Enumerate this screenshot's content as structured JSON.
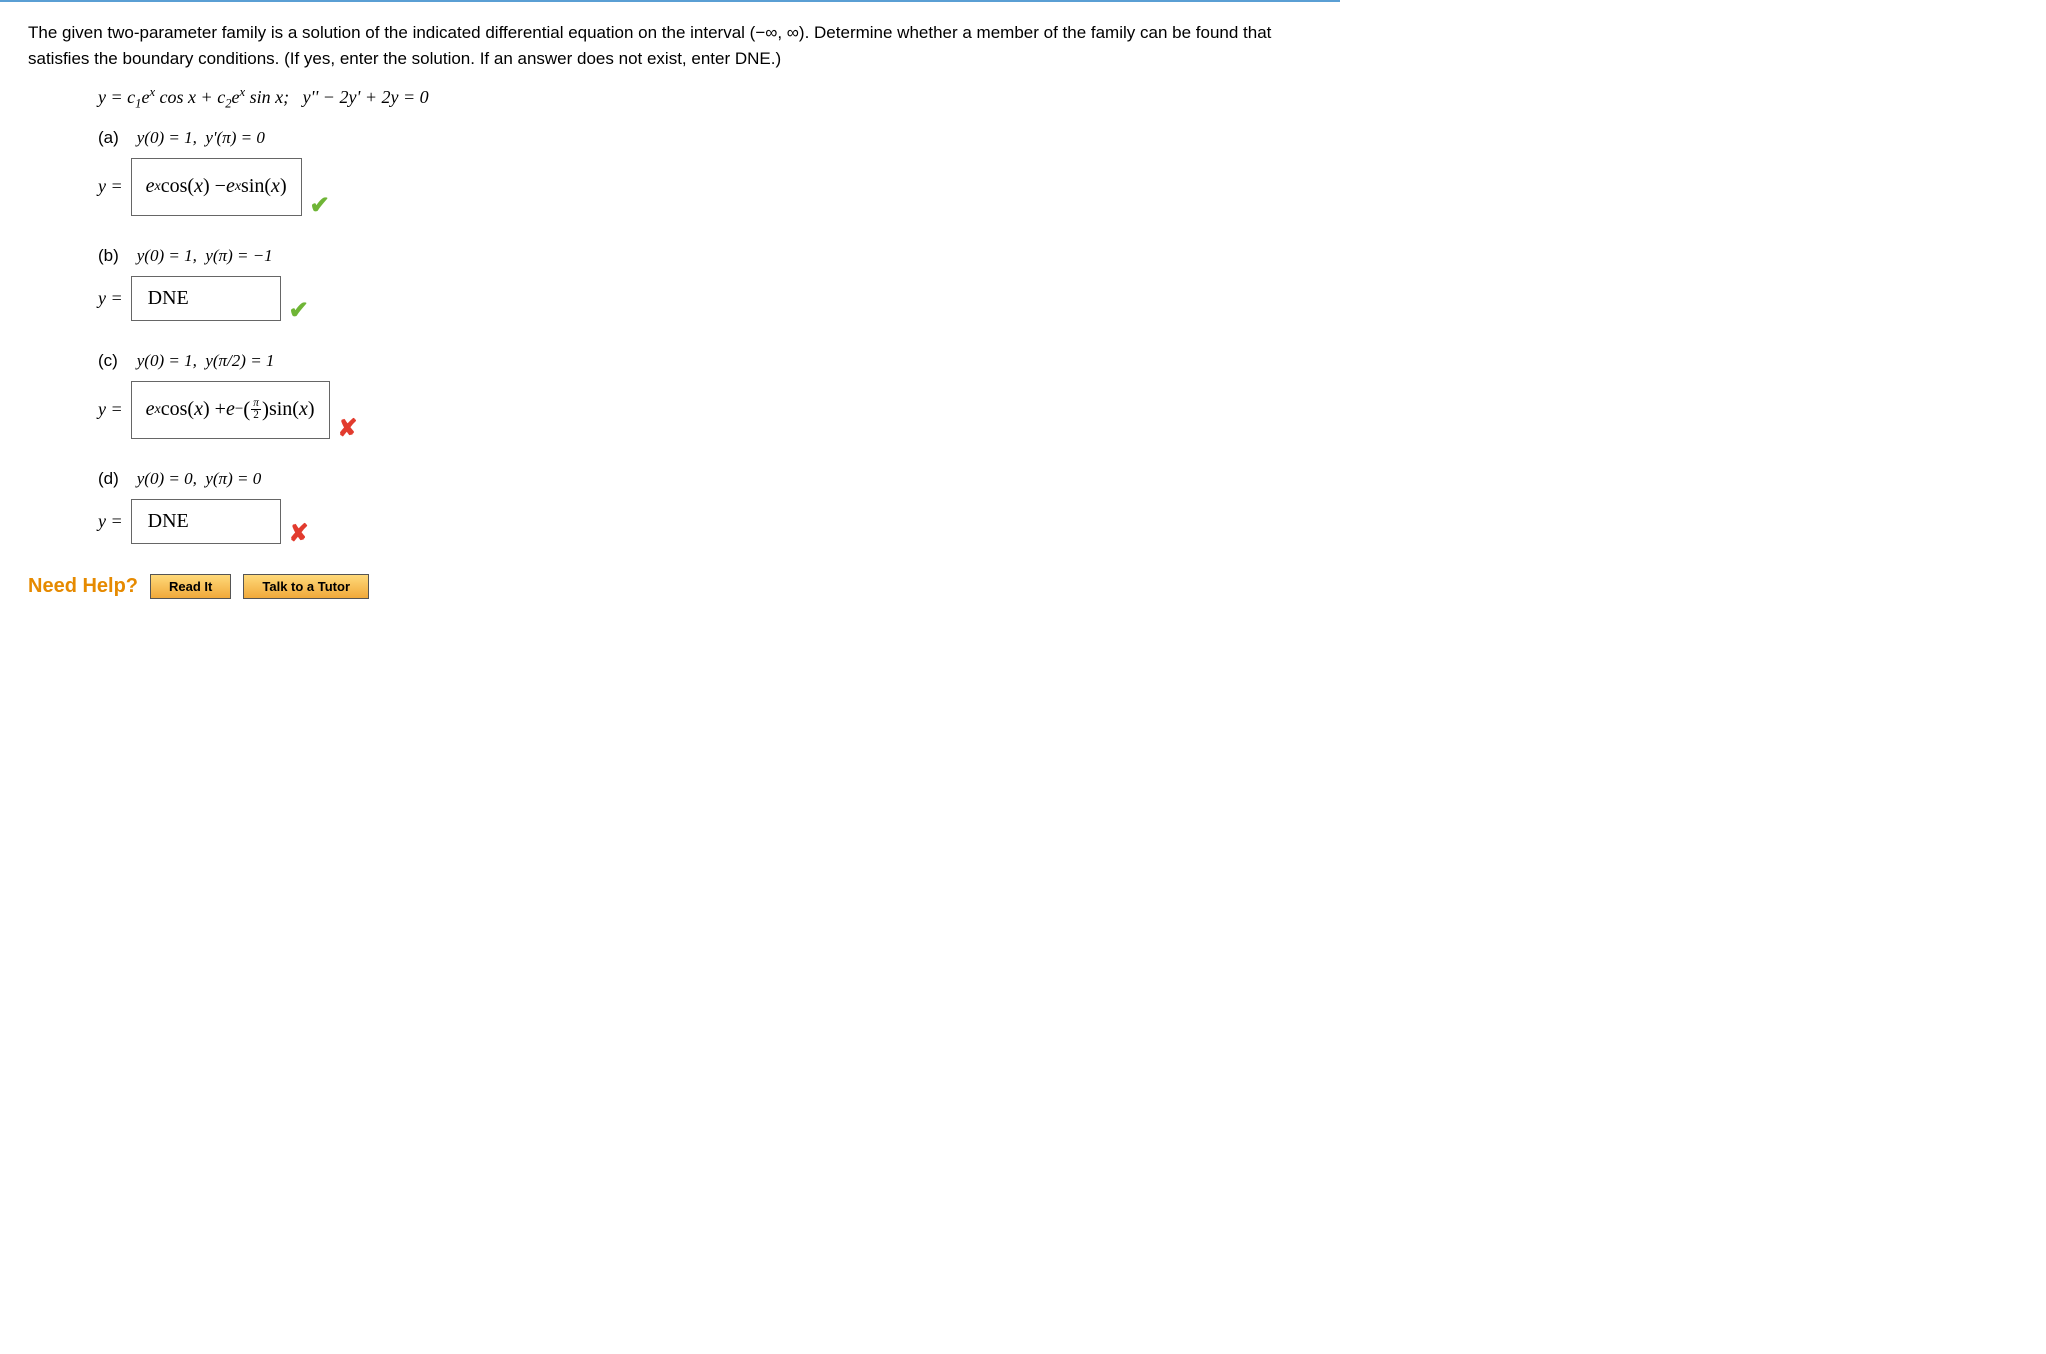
{
  "prompt_text": "The given two-parameter family is a solution of the indicated differential equation on the interval  (−∞, ∞).  Determine whether a member of the family can be found that satisfies the boundary conditions. (If yes, enter the solution. If an answer does not exist, enter DNE.)",
  "family_equation_html": "<span class='mi'>y</span> = <span class='mi'>c</span><span class='sub'>1</span><span class='mi'>e</span><span class='sup'>x</span> cos <span class='mi'>x</span> + <span class='mi'>c</span><span class='sub'>2</span><span class='mi'>e</span><span class='sup'>x</span> sin <span class='mi'>x</span>;&nbsp;&nbsp; <span class='mi'>y</span>'' − 2<span class='mi'>y</span>' + 2<span class='mi'>y</span> = 0",
  "parts": [
    {
      "label": "(a)",
      "condition_html": "<span class='mi'>y</span>(0) = 1,&nbsp; <span class='mi'>y</span>'(<span class='mi'>π</span>) = 0",
      "answer_html": "<span class='mi'>e</span><span class='sup'>x</span>cos(<span class='mi'>x</span>) − <span class='mi'>e</span><span class='sup'>x</span>sin(<span class='mi'>x</span>)",
      "answer_box_class": "tall",
      "mark": "correct"
    },
    {
      "label": "(b)",
      "condition_html": "<span class='mi'>y</span>(0) = 1,&nbsp; <span class='mi'>y</span>(<span class='mi'>π</span>) = −1",
      "answer_html": "DNE",
      "answer_box_class": "dne",
      "mark": "correct"
    },
    {
      "label": "(c)",
      "condition_html": "<span class='mi'>y</span>(0) = 1,&nbsp; <span class='mi'>y</span>(<span class='mi'>π</span>/2) = 1",
      "answer_html": "<span class='mi'>e</span><span class='sup'>x</span>cos(<span class='mi'>x</span>) + <span class='mi'>e</span><span class='supgroup'>−<span class='bigparen'>(</span><span class='frac'><span class='num'><span class='mi'>π</span></span><span class='den'>2</span></span><span class='bigparen'>)</span></span>sin(<span class='mi'>x</span>)",
      "answer_box_class": "tall",
      "mark": "wrong"
    },
    {
      "label": "(d)",
      "condition_html": "<span class='mi'>y</span>(0) = 0,&nbsp; <span class='mi'>y</span>(<span class='mi'>π</span>) = 0",
      "answer_html": "DNE",
      "answer_box_class": "dne",
      "mark": "wrong"
    }
  ],
  "need_help": {
    "label": "Need Help?",
    "read_it": "Read It",
    "tutor": "Talk to a Tutor"
  },
  "marks": {
    "correct_glyph": "✔",
    "wrong_glyph": "✘"
  },
  "colors": {
    "border_top": "#5a9fd4",
    "correct": "#6fb536",
    "wrong": "#e23b2e",
    "help_label": "#e68a00",
    "btn_top": "#ffd97a",
    "btn_bottom": "#f0a93a"
  }
}
